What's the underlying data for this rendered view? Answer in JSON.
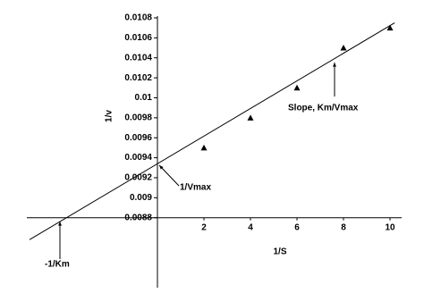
{
  "chart_data": {
    "type": "scatter",
    "x_label": "1/S",
    "y_label": "1/v",
    "x": [
      2,
      4,
      6,
      8,
      10
    ],
    "series": [
      {
        "values": [
          0.0095,
          0.0098,
          0.0101,
          0.0105,
          0.0107
        ],
        "color": "#000000"
      }
    ],
    "fit_line": {
      "x": [
        -5.5,
        10.2
      ],
      "y": [
        0.00858,
        0.01075
      ]
    },
    "xlim": [
      -5.5,
      10.5
    ],
    "ylim": [
      0.0081,
      0.0108
    ],
    "xticks": [
      2,
      4,
      6,
      8,
      10
    ],
    "yticks": [
      0.0088,
      0.009,
      0.0092,
      0.0094,
      0.0096,
      0.0098,
      0.01,
      0.0102,
      0.0104,
      0.0106,
      0.0108
    ],
    "annotations": [
      "1/Vmax",
      "Slope, Km/Vmax",
      "-1/Km"
    ]
  }
}
